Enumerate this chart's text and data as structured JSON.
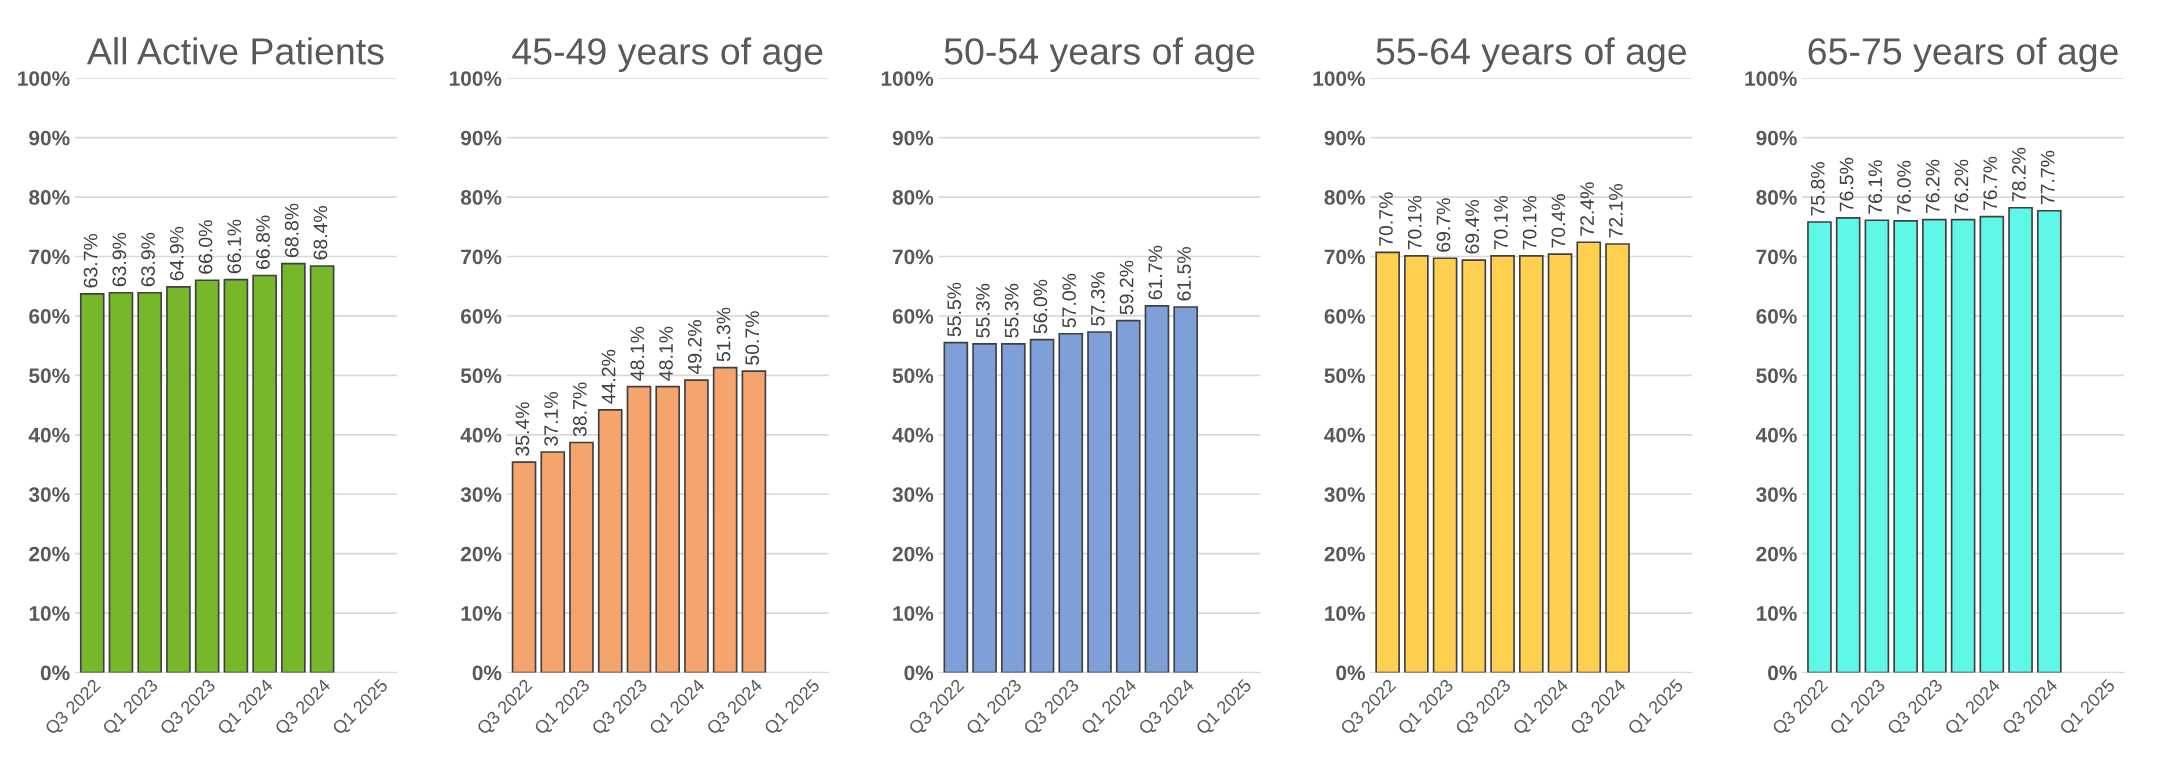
{
  "chart_data": [
    {
      "type": "bar",
      "title": "All Active Patients",
      "categories": [
        "Q3 2022",
        null,
        "Q1 2023",
        null,
        "Q3 2023",
        null,
        "Q1 2024",
        null,
        "Q3 2024",
        null,
        "Q1 2025"
      ],
      "values": [
        63.7,
        63.9,
        63.9,
        64.9,
        66.0,
        66.1,
        66.8,
        68.8,
        68.4,
        null,
        null
      ],
      "value_labels": [
        "63.7%",
        "63.9%",
        "63.9%",
        "64.9%",
        "66.0%",
        "66.1%",
        "66.8%",
        "68.8%",
        "68.4%",
        null,
        null
      ],
      "color": "#76b82a",
      "ylim": [
        0,
        100
      ],
      "yticks": [
        {
          "value": 0,
          "label": "0%"
        },
        {
          "value": 10,
          "label": "10%"
        },
        {
          "value": 20,
          "label": "20%"
        },
        {
          "value": 30,
          "label": "30%"
        },
        {
          "value": 40,
          "label": "40%"
        },
        {
          "value": 50,
          "label": "50%"
        },
        {
          "value": 60,
          "label": "60%"
        },
        {
          "value": 70,
          "label": "70%"
        },
        {
          "value": 80,
          "label": "80%"
        },
        {
          "value": 90,
          "label": "90%"
        },
        {
          "value": 100,
          "label": "100%"
        }
      ],
      "grid": "y"
    },
    {
      "type": "bar",
      "title": "45-49 years of age",
      "categories": [
        "Q3 2022",
        null,
        "Q1 2023",
        null,
        "Q3 2023",
        null,
        "Q1 2024",
        null,
        "Q3 2024",
        null,
        "Q1 2025"
      ],
      "values": [
        35.4,
        37.1,
        38.7,
        44.2,
        48.1,
        48.1,
        49.2,
        51.3,
        50.7,
        null,
        null
      ],
      "value_labels": [
        "35.4%",
        "37.1%",
        "38.7%",
        "44.2%",
        "48.1%",
        "48.1%",
        "49.2%",
        "51.3%",
        "50.7%",
        null,
        null
      ],
      "color": "#f4a46c",
      "ylim": [
        0,
        100
      ],
      "yticks": [
        {
          "value": 0,
          "label": "0%"
        },
        {
          "value": 10,
          "label": "10%"
        },
        {
          "value": 20,
          "label": "20%"
        },
        {
          "value": 30,
          "label": "30%"
        },
        {
          "value": 40,
          "label": "40%"
        },
        {
          "value": 50,
          "label": "50%"
        },
        {
          "value": 60,
          "label": "60%"
        },
        {
          "value": 70,
          "label": "70%"
        },
        {
          "value": 80,
          "label": "80%"
        },
        {
          "value": 90,
          "label": "90%"
        },
        {
          "value": 100,
          "label": "100%"
        }
      ],
      "grid": "y"
    },
    {
      "type": "bar",
      "title": "50-54 years of age",
      "categories": [
        "Q3 2022",
        null,
        "Q1 2023",
        null,
        "Q3 2023",
        null,
        "Q1 2024",
        null,
        "Q3 2024",
        null,
        "Q1 2025"
      ],
      "values": [
        55.5,
        55.3,
        55.3,
        56.0,
        57.0,
        57.3,
        59.2,
        61.7,
        61.5,
        null,
        null
      ],
      "value_labels": [
        "55.5%",
        "55.3%",
        "55.3%",
        "56.0%",
        "57.0%",
        "57.3%",
        "59.2%",
        "61.7%",
        "61.5%",
        null,
        null
      ],
      "color": "#7f9fd8",
      "ylim": [
        0,
        100
      ],
      "yticks": [
        {
          "value": 0,
          "label": "0%"
        },
        {
          "value": 10,
          "label": "10%"
        },
        {
          "value": 20,
          "label": "20%"
        },
        {
          "value": 30,
          "label": "30%"
        },
        {
          "value": 40,
          "label": "40%"
        },
        {
          "value": 50,
          "label": "50%"
        },
        {
          "value": 60,
          "label": "60%"
        },
        {
          "value": 70,
          "label": "70%"
        },
        {
          "value": 80,
          "label": "80%"
        },
        {
          "value": 90,
          "label": "90%"
        },
        {
          "value": 100,
          "label": "100%"
        }
      ],
      "grid": "y"
    },
    {
      "type": "bar",
      "title": "55-64 years of age",
      "categories": [
        "Q3 2022",
        null,
        "Q1 2023",
        null,
        "Q3 2023",
        null,
        "Q1 2024",
        null,
        "Q3 2024",
        null,
        "Q1 2025"
      ],
      "values": [
        70.7,
        70.1,
        69.7,
        69.4,
        70.1,
        70.1,
        70.4,
        72.4,
        72.1,
        null,
        null
      ],
      "value_labels": [
        "70.7%",
        "70.1%",
        "69.7%",
        "69.4%",
        "70.1%",
        "70.1%",
        "70.4%",
        "72.4%",
        "72.1%",
        null,
        null
      ],
      "color": "#ffd04f",
      "ylim": [
        0,
        100
      ],
      "yticks": [
        {
          "value": 0,
          "label": "0%"
        },
        {
          "value": 10,
          "label": "10%"
        },
        {
          "value": 20,
          "label": "20%"
        },
        {
          "value": 30,
          "label": "30%"
        },
        {
          "value": 40,
          "label": "40%"
        },
        {
          "value": 50,
          "label": "50%"
        },
        {
          "value": 60,
          "label": "60%"
        },
        {
          "value": 70,
          "label": "70%"
        },
        {
          "value": 80,
          "label": "80%"
        },
        {
          "value": 90,
          "label": "90%"
        },
        {
          "value": 100,
          "label": "100%"
        }
      ],
      "grid": "y"
    },
    {
      "type": "bar",
      "title": "65-75 years of age",
      "categories": [
        "Q3 2022",
        null,
        "Q1 2023",
        null,
        "Q3 2023",
        null,
        "Q1 2024",
        null,
        "Q3 2024",
        null,
        "Q1 2025"
      ],
      "values": [
        75.8,
        76.5,
        76.1,
        76.0,
        76.2,
        76.2,
        76.7,
        78.2,
        77.7,
        null,
        null
      ],
      "value_labels": [
        "75.8%",
        "76.5%",
        "76.1%",
        "76.0%",
        "76.2%",
        "76.2%",
        "76.7%",
        "78.2%",
        "77.7%",
        null,
        null
      ],
      "color": "#5ef7e8",
      "ylim": [
        0,
        100
      ],
      "yticks": [
        {
          "value": 0,
          "label": "0%"
        },
        {
          "value": 10,
          "label": "10%"
        },
        {
          "value": 20,
          "label": "20%"
        },
        {
          "value": 30,
          "label": "30%"
        },
        {
          "value": 40,
          "label": "40%"
        },
        {
          "value": 50,
          "label": "50%"
        },
        {
          "value": 60,
          "label": "60%"
        },
        {
          "value": 70,
          "label": "70%"
        },
        {
          "value": 80,
          "label": "80%"
        },
        {
          "value": 90,
          "label": "90%"
        },
        {
          "value": 100,
          "label": "100%"
        }
      ],
      "grid": "y"
    }
  ]
}
